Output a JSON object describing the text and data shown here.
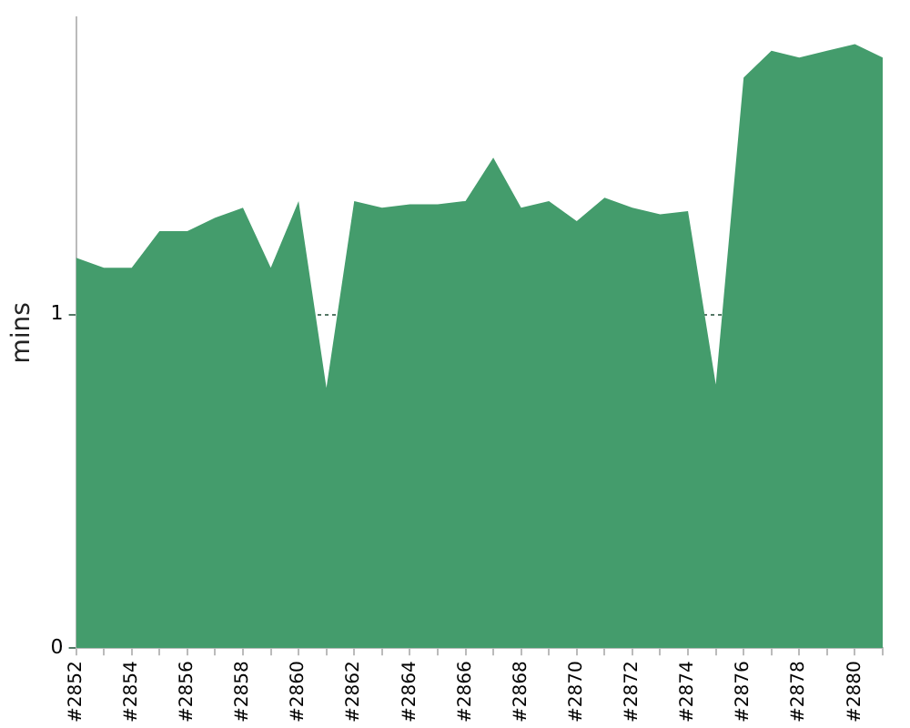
{
  "chart_data": {
    "type": "area",
    "ylabel": "mins",
    "categories": [
      "#2852",
      null,
      "#2854",
      null,
      "#2856",
      null,
      "#2858",
      null,
      "#2860",
      null,
      "#2862",
      null,
      "#2864",
      null,
      "#2866",
      null,
      "#2868",
      null,
      "#2870",
      null,
      "#2872",
      null,
      "#2874",
      null,
      "#2876",
      null,
      "#2878",
      null,
      "#2880",
      null
    ],
    "values": [
      1.17,
      1.14,
      1.14,
      1.25,
      1.25,
      1.29,
      1.32,
      1.14,
      1.34,
      0.78,
      1.34,
      1.32,
      1.33,
      1.33,
      1.34,
      1.47,
      1.32,
      1.34,
      1.28,
      1.35,
      1.32,
      1.3,
      1.31,
      0.79,
      1.71,
      1.79,
      1.77,
      1.79,
      1.81,
      1.77
    ],
    "color": "#449c6c",
    "ylim": [
      0,
      1.89
    ],
    "yticks": [
      0,
      1
    ],
    "grid": "y",
    "legend": false
  }
}
